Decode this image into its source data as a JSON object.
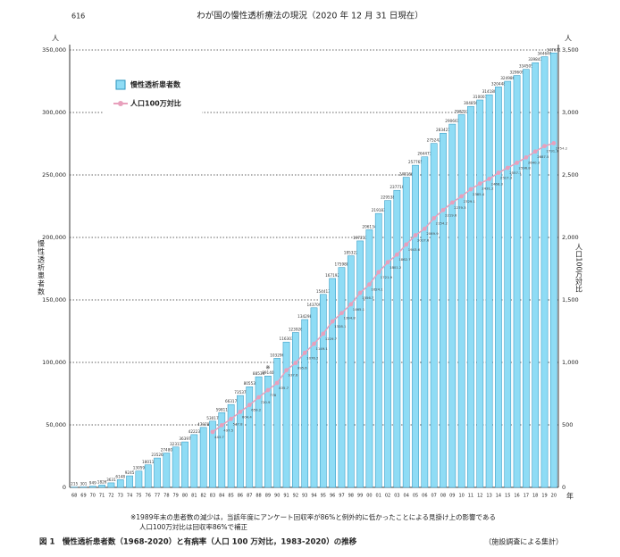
{
  "header": {
    "page": "616",
    "title": "わが国の慢性透析療法の現況（2020 年 12 月 31 日現在）"
  },
  "chart_data": {
    "type": "bar_line",
    "y_unit": "人",
    "y2_unit": "人",
    "x_unit": "年",
    "ylabel": "慢性透析患者数",
    "y2label": "人口100万対比",
    "categories": [
      "68",
      "69",
      "70",
      "71",
      "72",
      "73",
      "74",
      "75",
      "76",
      "77",
      "78",
      "79",
      "80",
      "81",
      "82",
      "83",
      "84",
      "85",
      "86",
      "87",
      "88",
      "89",
      "90",
      "91",
      "92",
      "93",
      "94",
      "95",
      "96",
      "97",
      "98",
      "99",
      "00",
      "01",
      "02",
      "03",
      "04",
      "05",
      "06",
      "07",
      "08",
      "09",
      "10",
      "11",
      "12",
      "13",
      "14",
      "15",
      "16",
      "17",
      "18",
      "19",
      "20"
    ],
    "series": [
      {
        "name": "慢性透析患者数",
        "color": "#8fdcf5",
        "values": [
          215,
          301,
          949,
          1826,
          3631,
          6148,
          9245,
          13059,
          18011,
          23526,
          27480,
          32311,
          36397,
          42223,
          47978,
          53017,
          59811,
          66317,
          73537,
          80553,
          88534,
          89140,
          103296,
          116303,
          123926,
          134298,
          143709,
          154413,
          167192,
          175988,
          185322,
          197213,
          206134,
          219183,
          229538,
          237710,
          248166,
          257765,
          264473,
          275242,
          283421,
          290661,
          298252,
          304856,
          310007,
          314180,
          320448,
          324986,
          329609,
          334505,
          339841,
          344640,
          347671
        ]
      },
      {
        "name": "人口100万対比",
        "color": "#e8a0bc",
        "axis": "y2",
        "values": [
          null,
          null,
          null,
          null,
          null,
          null,
          null,
          null,
          null,
          null,
          null,
          null,
          null,
          null,
          null,
          443.7,
          497.5,
          547.8,
          604.4,
          659.2,
          720.9,
          778,
          835.7,
          937.6,
          995.6,
          1076.2,
          1149.1,
          1229.7,
          1328.1,
          1394.8,
          1465.1,
          1556.7,
          1624.1,
          1721.9,
          1801.2,
          1862.7,
          1943.6,
          2017.6,
          2069.9,
          2154.2,
          2219.6,
          2279.3,
          2329.1,
          2385.4,
          2431.2,
          2468.3,
          2517.3,
          2557.1,
          2596.8,
          2640.3,
          2687.5,
          2731.3,
          2754.2
        ]
      }
    ],
    "ylim": [
      0,
      350000
    ],
    "yticks": [
      0,
      {
        "value": 50000,
        "label": "50,000"
      },
      {
        "value": 100000,
        "label": "100,000"
      },
      {
        "value": 150000,
        "label": "150,000"
      },
      {
        "value": 200000,
        "label": "200,000"
      },
      {
        "value": 250000,
        "label": "250,000"
      },
      {
        "value": 300000,
        "label": "300,000"
      },
      {
        "value": 350000,
        "label": "350,000"
      }
    ],
    "y2lim": [
      0,
      3500
    ],
    "y2ticks": [
      0,
      500,
      {
        "value": 1000,
        "label": "1,000"
      },
      {
        "value": 1500,
        "label": "1,500"
      },
      {
        "value": 2000,
        "label": "2,000"
      },
      {
        "value": 2500,
        "label": "2,500"
      },
      {
        "value": 3000,
        "label": "3,000"
      },
      {
        "value": 3500,
        "label": "3,500"
      }
    ],
    "grid": true,
    "annotation": "※",
    "notes": [
      "※1989年末の患者数の減少は，当該年度にアンケート回収率が86%と例外的に低かったことによる見掛け上の影響である",
      "人口100万対比は回収率86%で補正"
    ]
  },
  "caption": {
    "title": "図 1　慢性透析患者数（1968-2020）と有病率（人口 100 万対比，1983-2020）の推移",
    "source": "（施設調査による集計）"
  }
}
